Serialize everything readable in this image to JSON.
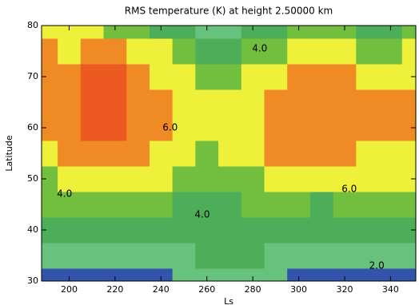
{
  "chart_data": {
    "type": "contour",
    "title": "RMS temperature (K) at height 2.50000 km",
    "x_label": "Ls",
    "y_label": "Latitude",
    "xlim": [
      188,
      351
    ],
    "ylim": [
      30,
      80
    ],
    "xticks": [
      200,
      220,
      240,
      260,
      280,
      300,
      320,
      340
    ],
    "yticks": [
      30,
      40,
      50,
      60,
      70,
      80
    ],
    "x": [
      190,
      200,
      210,
      220,
      230,
      240,
      250,
      260,
      270,
      280,
      290,
      300,
      310,
      320,
      330,
      340,
      350
    ],
    "y": [
      30,
      35,
      40,
      45,
      50,
      55,
      60,
      65,
      70,
      75,
      80
    ],
    "z": [
      [
        1.5,
        1.5,
        1.5,
        1.6,
        1.7,
        1.8,
        2.2,
        2.4,
        2.5,
        2.5,
        2.4,
        1.8,
        1.6,
        1.7,
        1.8,
        1.8,
        1.8
      ],
      [
        2.2,
        2.2,
        2.1,
        2.2,
        2.3,
        2.5,
        2.8,
        3.0,
        3.0,
        3.0,
        2.8,
        2.4,
        2.2,
        2.3,
        2.4,
        2.4,
        2.5
      ],
      [
        3.0,
        3.0,
        3.0,
        3.1,
        3.2,
        3.3,
        3.4,
        3.5,
        3.6,
        3.5,
        3.4,
        3.2,
        3.0,
        3.2,
        3.4,
        3.4,
        3.5
      ],
      [
        4.0,
        4.0,
        4.1,
        4.2,
        4.3,
        4.2,
        3.9,
        3.8,
        3.9,
        4.1,
        4.3,
        4.2,
        3.8,
        4.1,
        4.4,
        4.5,
        4.6
      ],
      [
        4.8,
        5.0,
        5.4,
        5.8,
        5.7,
        5.2,
        4.6,
        4.3,
        4.4,
        4.8,
        5.3,
        5.6,
        5.2,
        5.6,
        5.4,
        5.3,
        5.4
      ],
      [
        5.6,
        6.0,
        6.4,
        6.7,
        6.3,
        5.8,
        5.2,
        4.8,
        5.0,
        5.5,
        6.0,
        6.4,
        6.6,
        6.2,
        5.8,
        5.7,
        5.8
      ],
      [
        6.2,
        6.6,
        7.0,
        7.2,
        6.6,
        6.2,
        5.6,
        5.1,
        5.3,
        5.8,
        6.3,
        6.8,
        6.9,
        6.5,
        6.0,
        6.0,
        6.0
      ],
      [
        6.6,
        6.8,
        7.2,
        7.4,
        6.8,
        6.2,
        5.5,
        5.0,
        5.1,
        5.6,
        6.2,
        6.8,
        6.8,
        6.6,
        6.2,
        6.0,
        6.0
      ],
      [
        6.5,
        6.8,
        7.3,
        7.5,
        6.6,
        5.8,
        5.0,
        4.5,
        4.6,
        5.2,
        5.8,
        6.4,
        6.6,
        6.4,
        5.8,
        5.4,
        5.8
      ],
      [
        6.0,
        5.9,
        6.0,
        6.0,
        5.6,
        5.0,
        4.2,
        3.8,
        3.8,
        4.3,
        4.8,
        5.3,
        5.6,
        5.4,
        4.8,
        4.2,
        5.2
      ],
      [
        5.4,
        5.0,
        5.0,
        4.8,
        4.5,
        3.8,
        3.2,
        2.8,
        2.8,
        3.2,
        3.8,
        4.2,
        4.5,
        4.3,
        3.9,
        3.6,
        4.4
      ]
    ],
    "levels": [
      2,
      3,
      4,
      5,
      6,
      7
    ],
    "colors": [
      "#3354ab",
      "#66c27c",
      "#4cae58",
      "#72be3e",
      "#eef03a",
      "#f08a24",
      "#ec5a22"
    ],
    "annotations": [
      {
        "text": "4.0",
        "x": 283,
        "y": 75.5
      },
      {
        "text": "6.0",
        "x": 244,
        "y": 60
      },
      {
        "text": "2.0",
        "x": 334,
        "y": 33
      },
      {
        "text": "4.0",
        "x": 198,
        "y": 47
      },
      {
        "text": "6.0",
        "x": 322,
        "y": 48
      },
      {
        "text": "4.0",
        "x": 258,
        "y": 43
      }
    ]
  }
}
